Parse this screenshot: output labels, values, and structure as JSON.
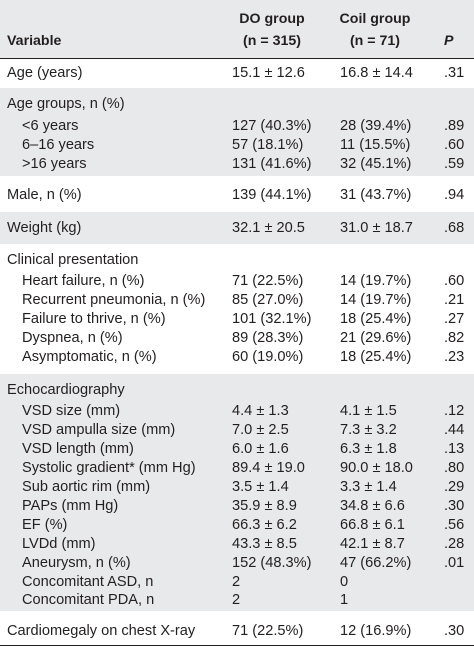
{
  "header": {
    "variable": "Variable",
    "do_group": "DO group",
    "do_n": "(n = 315)",
    "coil_group": "Coil group",
    "coil_n": "(n = 71)",
    "p": "P"
  },
  "rows": {
    "age": {
      "label": "Age (years)",
      "do": "15.1 ± 12.6",
      "coil": "16.8 ± 14.4",
      "p": ".31"
    },
    "age_groups": {
      "label": "Age groups, n (%)"
    },
    "lt6": {
      "label": "<6 years",
      "do": "127 (40.3%)",
      "coil": "28 (39.4%)",
      "p": ".89"
    },
    "r6_16": {
      "label": "6–16 years",
      "do": "57 (18.1%)",
      "coil": "11 (15.5%)",
      "p": ".60"
    },
    "gt16": {
      "label": ">16 years",
      "do": "131 (41.6%)",
      "coil": "32 (45.1%)",
      "p": ".59"
    },
    "male": {
      "label": "Male, n (%)",
      "do": "139 (44.1%)",
      "coil": "31 (43.7%)",
      "p": ".94"
    },
    "weight": {
      "label": "Weight (kg)",
      "do": "32.1 ± 20.5",
      "coil": "31.0 ± 18.7",
      "p": ".68"
    },
    "clinical": {
      "label": "Clinical presentation"
    },
    "heart_failure": {
      "label": "Heart failure, n (%)",
      "do": "71 (22.5%)",
      "coil": "14 (19.7%)",
      "p": ".60"
    },
    "pneumonia": {
      "label": "Recurrent pneumonia, n (%)",
      "do": "85 (27.0%)",
      "coil": "14 (19.7%)",
      "p": ".21"
    },
    "thrive": {
      "label": "Failure to thrive, n (%)",
      "do": "101 (32.1%)",
      "coil": "18 (25.4%)",
      "p": ".27"
    },
    "dyspnea": {
      "label": "Dyspnea, n (%)",
      "do": "89 (28.3%)",
      "coil": "21 (29.6%)",
      "p": ".82"
    },
    "asymptomatic": {
      "label": "Asymptomatic, n (%)",
      "do": "60 (19.0%)",
      "coil": "18 (25.4%)",
      "p": ".23"
    },
    "echo": {
      "label": "Echocardiography"
    },
    "vsd_size": {
      "label": "VSD size (mm)",
      "do": "4.4 ± 1.3",
      "coil": "4.1 ± 1.5",
      "p": ".12"
    },
    "ampulla": {
      "label": "VSD ampulla size (mm)",
      "do": "7.0 ± 2.5",
      "coil": "7.3 ± 3.2",
      "p": ".44"
    },
    "vsd_length": {
      "label": "VSD length (mm)",
      "do": "6.0 ± 1.6",
      "coil": "6.3 ± 1.8",
      "p": ".13"
    },
    "systolic": {
      "label": "Systolic gradient* (mm Hg)",
      "do": "89.4 ± 19.0",
      "coil": "90.0 ± 18.0",
      "p": ".80"
    },
    "subaortic": {
      "label": "Sub aortic rim (mm)",
      "do": "3.5 ± 1.4",
      "coil": "3.3 ± 1.4",
      "p": ".29"
    },
    "paps": {
      "label": "PAPs (mm Hg)",
      "do": "35.9 ± 8.9",
      "coil": "34.8 ± 6.6",
      "p": ".30"
    },
    "ef": {
      "label": "EF (%)",
      "do": "66.3 ± 6.2",
      "coil": "66.8 ± 6.1",
      "p": ".56"
    },
    "lvdd": {
      "label": "LVDd (mm)",
      "do": "43.3 ± 8.5",
      "coil": "42.1 ± 8.7",
      "p": ".28"
    },
    "aneurysm": {
      "label": "Aneurysm, n (%)",
      "do": "152 (48.3%)",
      "coil": "47 (66.2%)",
      "p": ".01"
    },
    "asd": {
      "label": "Concomitant ASD, n",
      "do": "2",
      "coil": "0",
      "p": ""
    },
    "pda": {
      "label": "Concomitant PDA, n",
      "do": "2",
      "coil": "1",
      "p": ""
    },
    "cardiomegaly": {
      "label": "Cardiomegaly on chest X-ray",
      "do": "71 (22.5%)",
      "coil": "12 (16.9%)",
      "p": ".30"
    }
  }
}
